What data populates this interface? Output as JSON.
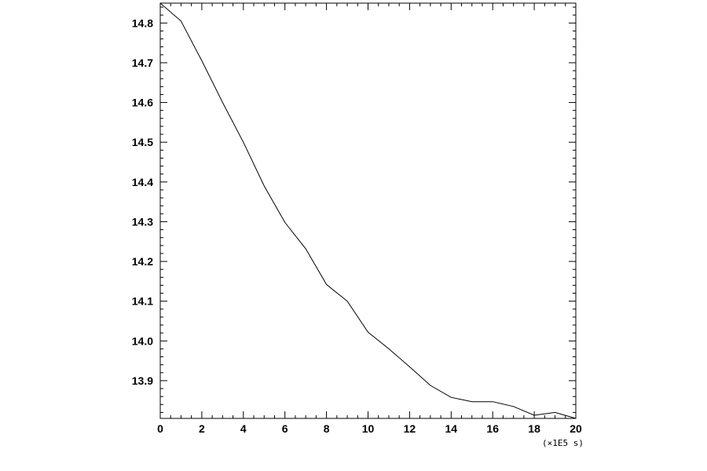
{
  "chart_data": {
    "type": "line",
    "title": "",
    "xlabel": "",
    "ylabel": "",
    "x_unit_label": "(×1E5 s)",
    "xlim": [
      0,
      20
    ],
    "ylim": [
      13.805,
      14.85
    ],
    "x_ticks": [
      0,
      2,
      4,
      6,
      8,
      10,
      12,
      14,
      16,
      18,
      20
    ],
    "x_tick_labels": [
      "0",
      "2",
      "4",
      "6",
      "8",
      "10",
      "12",
      "14",
      "16",
      "18",
      "20"
    ],
    "y_ticks": [
      13.9,
      14.0,
      14.1,
      14.2,
      14.3,
      14.4,
      14.5,
      14.6,
      14.7,
      14.8
    ],
    "y_tick_labels": [
      "13.9",
      "14.0",
      "14.1",
      "14.2",
      "14.3",
      "14.4",
      "14.5",
      "14.6",
      "14.7",
      "14.8"
    ],
    "grid": false,
    "legend": "none",
    "series": [
      {
        "color": "#000000",
        "x": [
          0,
          1,
          2,
          3,
          4,
          5,
          6,
          7,
          8,
          9,
          10,
          11,
          12,
          13,
          14,
          15,
          16,
          17,
          18,
          19,
          20
        ],
        "y": [
          14.85,
          14.805,
          14.705,
          14.6,
          14.5,
          14.39,
          14.298,
          14.232,
          14.142,
          14.1,
          14.022,
          13.98,
          13.935,
          13.888,
          13.858,
          13.847,
          13.847,
          13.835,
          13.813,
          13.82,
          13.805
        ]
      }
    ]
  }
}
